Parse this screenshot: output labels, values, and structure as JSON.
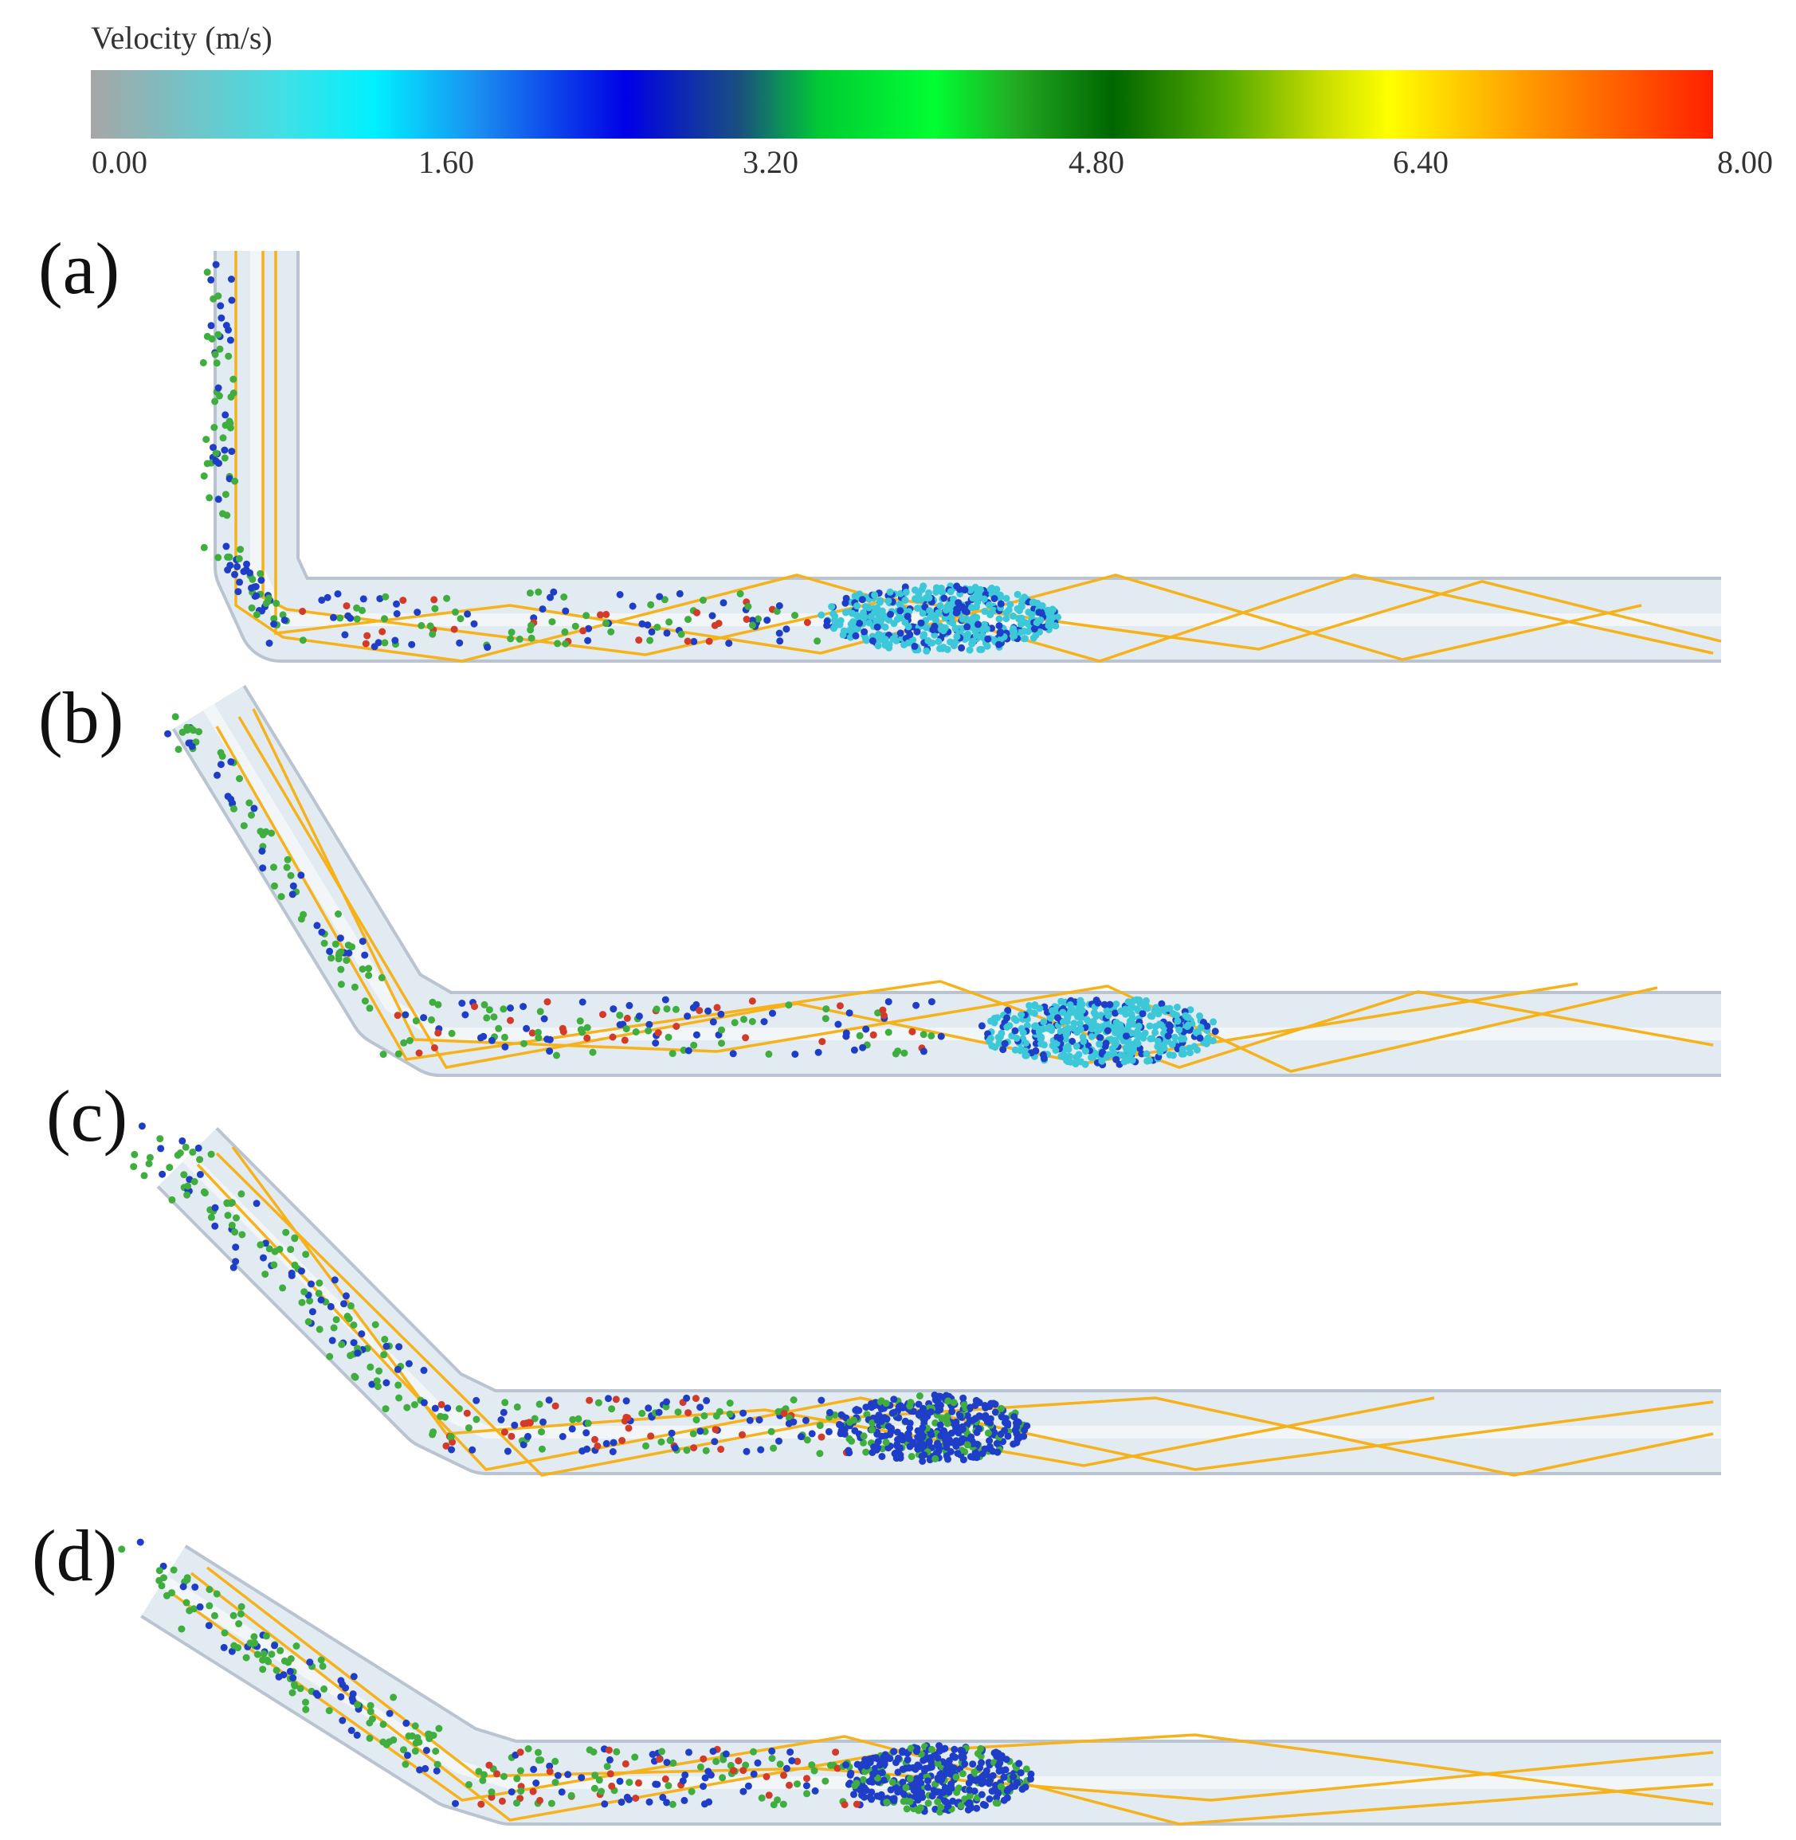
{
  "legend": {
    "title": "Velocity (m/s)",
    "ticks": [
      "0.00",
      "1.60",
      "3.20",
      "4.80",
      "6.40",
      "8.00"
    ],
    "colors": {
      "min": "#a6a6a6",
      "cyan": "#00f0ff",
      "blue": "#0000e6",
      "green": "#00ff33",
      "dark_green": "#006600",
      "yellow": "#ffff00",
      "max": "#ff2000"
    }
  },
  "panels": [
    {
      "label": "(a)"
    },
    {
      "label": "(b)"
    },
    {
      "label": "(c)"
    },
    {
      "label": "(d)"
    }
  ],
  "colors": {
    "pipe_fill": "#e3ebf2",
    "pipe_edge": "#b9c4d0",
    "ray": "#f5b21a",
    "particle_cyan": "#3cc8d8",
    "particle_blue": "#1f3ec8",
    "particle_green": "#3fae3f",
    "particle_red": "#d23a2a"
  }
}
